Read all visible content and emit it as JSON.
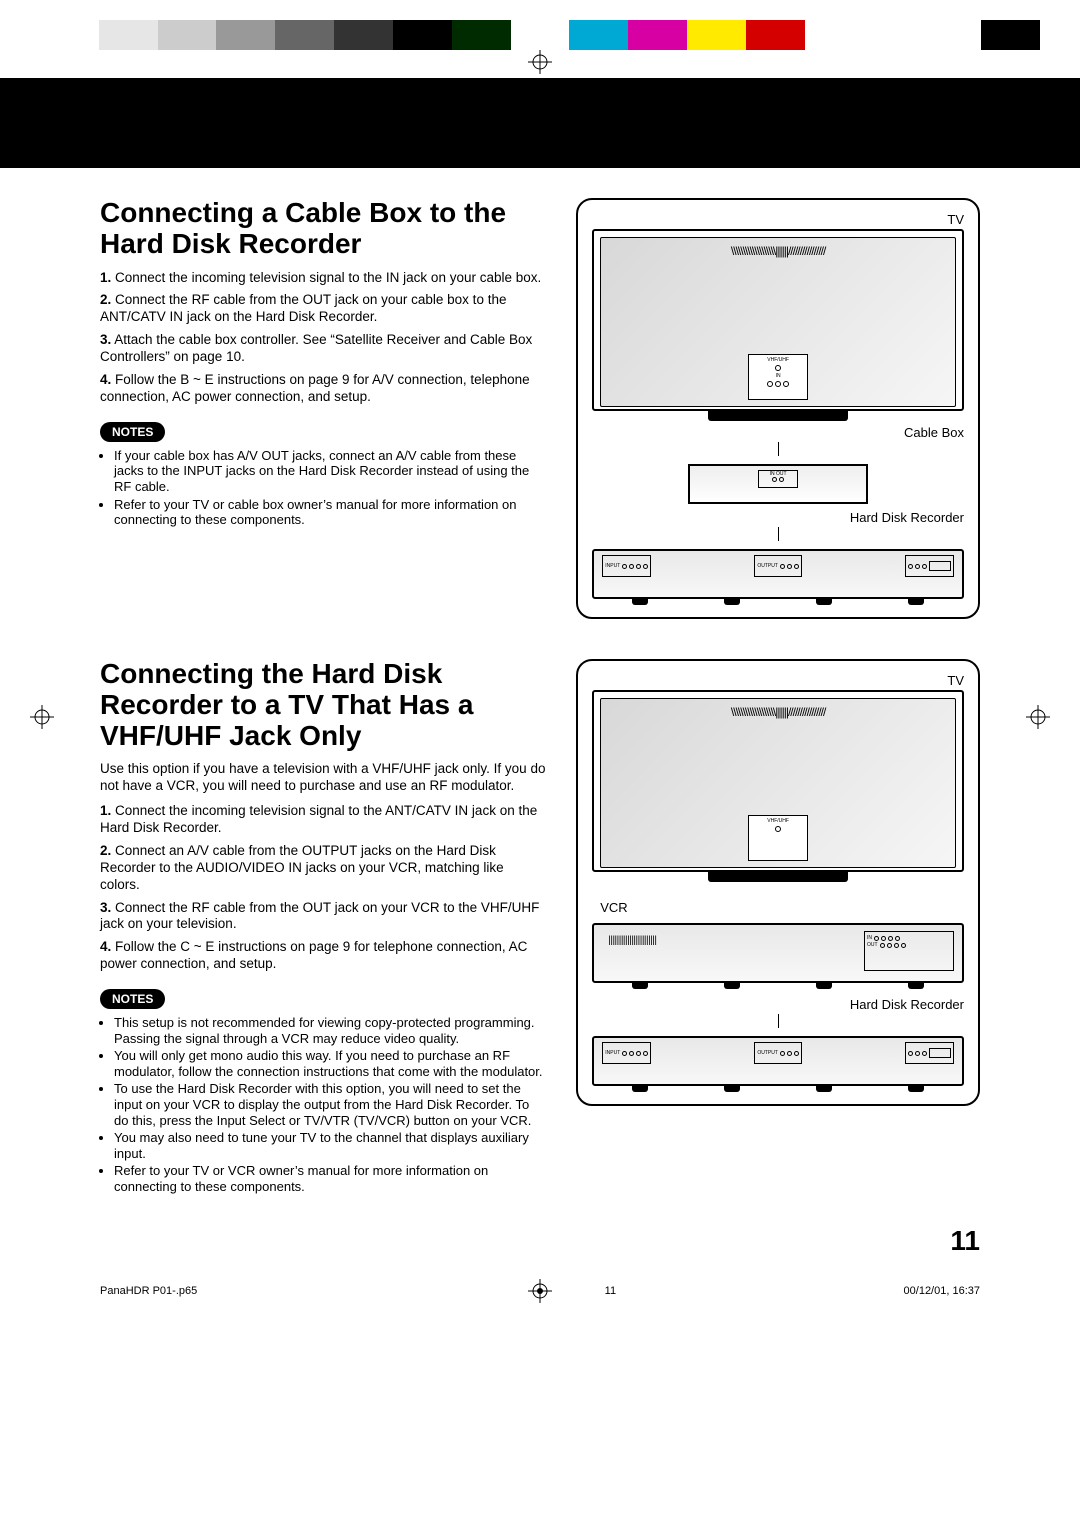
{
  "colorbar": [
    "#ffffff",
    "#e6e6e6",
    "#cccccc",
    "#999999",
    "#666666",
    "#333333",
    "#000000",
    "#002a00",
    "#ffffff",
    "#00a9d4",
    "#d600a3",
    "#ffea00",
    "#d40000",
    "#ffffff",
    "#ffffff",
    "#ffffff",
    "#000000"
  ],
  "section1": {
    "title": "Connecting a Cable Box to the Hard Disk Recorder",
    "steps": [
      "Connect the incoming television signal to the IN jack on your cable box.",
      "Connect the RF cable from the OUT jack on your cable box to the ANT/CATV IN jack on the Hard Disk Recorder.",
      "Attach the cable box controller. See “Satellite Receiver and Cable Box Controllers” on page 10.",
      "Follow the B ~ E instructions on page 9 for A/V connection, telephone connection, AC power connection, and setup."
    ],
    "notes_label": "NOTES",
    "notes": [
      "If your cable box has A/V OUT jacks, connect an A/V cable from these jacks to the INPUT jacks on the Hard Disk Recorder instead of using the RF cable.",
      "Refer to your TV or cable box owner’s manual for more information on connecting to these components."
    ],
    "diagram": {
      "tv_label": "TV",
      "tv_panel_line": "VHF/UHF",
      "tv_panel_in": "IN",
      "cable_box_label": "Cable Box",
      "cb_in": "IN",
      "cb_out": "OUT",
      "hdr_label": "Hard Disk Recorder",
      "hdr_input": "INPUT",
      "hdr_output": "OUTPUT"
    }
  },
  "section2": {
    "title": "Connecting the Hard Disk Recorder to a TV That Has a VHF/UHF Jack Only",
    "intro": "Use this option if you have a television with a VHF/UHF jack only. If you do not have a VCR, you will need to purchase and use an RF modulator.",
    "steps": [
      "Connect the incoming television signal to the ANT/CATV IN jack on the Hard Disk Recorder.",
      "Connect an A/V cable from the OUTPUT jacks on the Hard Disk Recorder to the AUDIO/VIDEO IN jacks on your VCR, matching like colors.",
      "Connect the RF cable from the OUT jack on your VCR to the VHF/UHF jack on your television.",
      "Follow the C ~ E instructions on page 9 for  telephone connection, AC power connection, and setup."
    ],
    "notes_label": "NOTES",
    "notes": [
      "This setup is not recommended for viewing copy-protected programming. Passing the signal through a VCR may reduce video quality.",
      "You will only get mono audio this way. If you need to purchase an RF modulator, follow the connection instructions that come with the modulator.",
      "To use the Hard Disk Recorder with this option, you will need to set the input on your VCR to display the output from the Hard Disk Recorder. To do this, press the Input Select or TV/VTR (TV/VCR) button on your VCR.",
      "You may also need to tune your TV to the channel that displays auxiliary input.",
      "Refer to your TV or VCR owner’s manual for more information on connecting to these components."
    ],
    "diagram": {
      "tv_label": "TV",
      "tv_panel_line": "VHF/UHF",
      "vcr_label": "VCR",
      "vcr_in": "IN",
      "vcr_out": "OUT",
      "hdr_label": "Hard Disk Recorder",
      "hdr_input": "INPUT",
      "hdr_output": "OUTPUT"
    }
  },
  "page_number": "11",
  "footer": {
    "file": "PanaHDR P01-.p65",
    "page": "11",
    "datetime": "00/12/01, 16:37"
  }
}
